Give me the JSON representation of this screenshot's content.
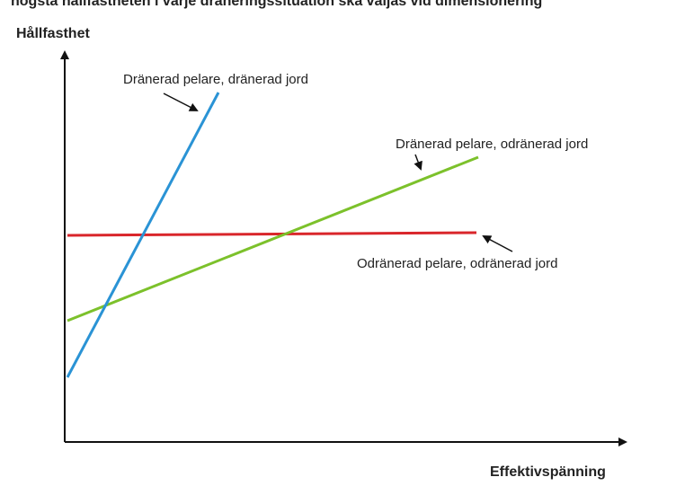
{
  "caption": "högsta hållfastheten i varje dräneringssituation ska väljas vid dimensionering",
  "axes": {
    "y_label": "Hållfasthet",
    "x_label": "Effektivspänning"
  },
  "lines": [
    {
      "label": "Dränerad pelare, dränerad jord"
    },
    {
      "label": "Dränerad pelare, odränerad jord"
    },
    {
      "label": "Odränerad pelare, odränerad jord"
    }
  ]
}
